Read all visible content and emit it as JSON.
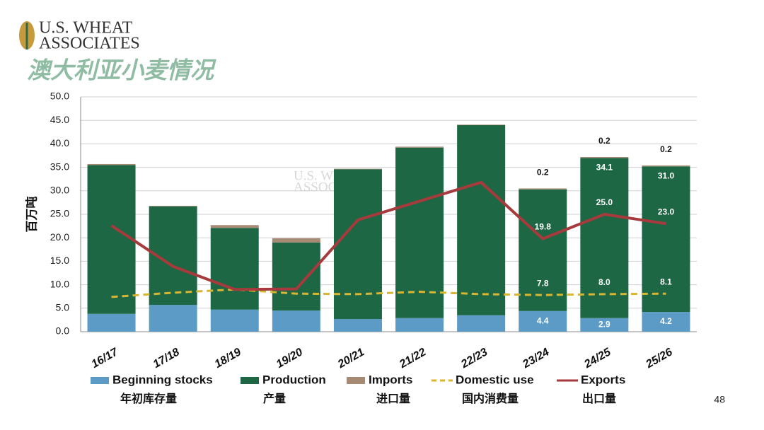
{
  "logo": {
    "line1": "U.S. WHEAT",
    "line2": "ASSOCIATES"
  },
  "page_title": "澳大利亚小麦情况",
  "page_number": "48",
  "chart_data": {
    "type": "bar",
    "stacked": true,
    "y_label": "百万吨",
    "watermark": {
      "line1": "U.S. WHEAT",
      "line2": "ASSOCIATES"
    },
    "categories": [
      "16/17",
      "17/18",
      "18/19",
      "19/20",
      "20/21",
      "21/22",
      "22/23",
      "23/24",
      "24/25",
      "25/26"
    ],
    "ylim": [
      0,
      50
    ],
    "yticks": [
      {
        "value": 0,
        "label": "0.0"
      },
      {
        "value": 5,
        "label": "5.0"
      },
      {
        "value": 10,
        "label": "10.0"
      },
      {
        "value": 15,
        "label": "15.0"
      },
      {
        "value": 20,
        "label": "20.0"
      },
      {
        "value": 25,
        "label": "25.0"
      },
      {
        "value": 30,
        "label": "30.0"
      },
      {
        "value": 35,
        "label": "35.0"
      },
      {
        "value": 40,
        "label": "40.0"
      },
      {
        "value": 45,
        "label": "45.0"
      },
      {
        "value": 50,
        "label": "50.0"
      }
    ],
    "grid": true,
    "series": [
      {
        "name": "Beginning stocks",
        "label_cn": "年初库存量",
        "kind": "bar",
        "color": "#5b9bc5",
        "values": [
          3.8,
          5.7,
          4.7,
          4.5,
          2.7,
          2.9,
          3.5,
          4.4,
          2.9,
          4.2
        ],
        "value_labels": [
          null,
          null,
          null,
          null,
          null,
          null,
          null,
          "4.4",
          "2.9",
          "4.2"
        ]
      },
      {
        "name": "Production",
        "label_cn": "产量",
        "kind": "bar",
        "color": "#1e6744",
        "values": [
          31.7,
          21.0,
          17.4,
          14.5,
          31.9,
          36.3,
          40.5,
          25.9,
          34.1,
          31.0
        ],
        "value_labels": [
          null,
          null,
          null,
          null,
          null,
          null,
          null,
          null,
          "34.1",
          "31.0"
        ]
      },
      {
        "name": "Imports",
        "label_cn": "进口量",
        "kind": "bar",
        "color": "#a68a74",
        "values": [
          0.2,
          0.1,
          0.6,
          0.9,
          0.1,
          0.2,
          0.1,
          0.2,
          0.2,
          0.2
        ],
        "value_labels": [
          null,
          null,
          null,
          null,
          null,
          null,
          null,
          "0.2",
          "0.2",
          "0.2"
        ]
      },
      {
        "name": "Domestic use",
        "label_cn": "国内消费量",
        "kind": "line",
        "dashed": true,
        "color": "#d8b532",
        "values": [
          7.4,
          8.3,
          9.0,
          8.1,
          8.0,
          8.5,
          8.0,
          7.8,
          8.0,
          8.1
        ],
        "value_labels": [
          null,
          null,
          null,
          null,
          null,
          null,
          null,
          "7.8",
          "8.0",
          "8.1"
        ]
      },
      {
        "name": "Exports",
        "label_cn": "出口量",
        "kind": "line",
        "dashed": false,
        "color": "#a63a3c",
        "values": [
          22.6,
          13.9,
          9.0,
          9.1,
          23.8,
          27.8,
          31.8,
          19.8,
          25.0,
          23.0
        ],
        "value_labels": [
          null,
          null,
          null,
          null,
          null,
          null,
          null,
          "19.8",
          "25.0",
          "23.0"
        ]
      }
    ]
  }
}
